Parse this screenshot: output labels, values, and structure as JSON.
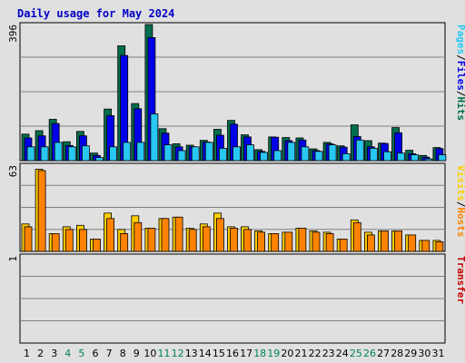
{
  "chart_data": {
    "type": "bar",
    "title": "Daily usage for May 2024",
    "days": [
      "1",
      "2",
      "3",
      "4",
      "5",
      "6",
      "7",
      "8",
      "9",
      "10",
      "11",
      "12",
      "13",
      "14",
      "15",
      "16",
      "17",
      "18",
      "19",
      "20",
      "21",
      "22",
      "23",
      "24",
      "25",
      "26",
      "27",
      "28",
      "29",
      "30",
      "31"
    ],
    "weekend_days": [
      "4",
      "5",
      "11",
      "12",
      "18",
      "19",
      "25",
      "26"
    ],
    "panels": [
      {
        "id": "top",
        "scale_label": "396",
        "ymax": 396,
        "right_labels": [
          "Hits",
          "Files",
          "Pages"
        ],
        "series": [
          {
            "name": "Hits",
            "color": "#006d4e",
            "values": [
              77,
              87,
              120,
              55,
              85,
              22,
              150,
              334,
              166,
              396,
              93,
              49,
              45,
              59,
              91,
              117,
              75,
              32,
              69,
              67,
              66,
              34,
              53,
              43,
              104,
              58,
              51,
              96,
              30,
              15,
              38
            ]
          },
          {
            "name": "Files",
            "color": "#0000e8",
            "values": [
              66,
              72,
              108,
              44,
              72,
              15,
              131,
              306,
              151,
              358,
              80,
              40,
              40,
              54,
              74,
              106,
              69,
              27,
              68,
              58,
              60,
              29,
              49,
              39,
              70,
              40,
              50,
              81,
              20,
              10,
              35
            ]
          },
          {
            "name": "Pages",
            "color": "#28c8f2",
            "values": [
              40,
              40,
              53,
              40,
              43,
              9,
              40,
              53,
              53,
              136,
              46,
              29,
              40,
              53,
              36,
              40,
              46,
              24,
              29,
              53,
              40,
              27,
              46,
              20,
              60,
              36,
              26,
              22,
              17,
              5,
              17
            ]
          }
        ]
      },
      {
        "id": "middle",
        "scale_label": "63",
        "ymax": 63,
        "right_labels": [
          "Hosts",
          "Visits"
        ],
        "series": [
          {
            "name": "Visits",
            "color": "#ffcd00",
            "values": [
              20,
              60,
              13,
              18,
              19,
              9,
              28,
              16,
              26,
              17,
              24,
              25,
              17,
              20,
              28,
              18,
              18,
              15,
              13,
              14,
              17,
              15,
              14,
              9,
              23,
              14,
              15,
              15,
              12,
              8,
              8
            ]
          },
          {
            "name": "Hosts",
            "color": "#ff8200",
            "values": [
              18,
              59,
              13,
              16,
              16,
              9,
              24,
              13,
              21,
              17,
              24,
              25,
              16,
              18,
              24,
              17,
              16,
              14,
              13,
              14,
              17,
              14,
              13,
              9,
              21,
              12,
              15,
              15,
              12,
              8,
              7
            ]
          }
        ]
      },
      {
        "id": "bottom",
        "scale_label": "1",
        "ymax": 1,
        "right_labels": [
          "Transfer"
        ],
        "series": [
          {
            "name": "Transfer",
            "color": "#c80000",
            "values": [
              0,
              0,
              0,
              0,
              0,
              0,
              0,
              0,
              0,
              0,
              0,
              0,
              0,
              0,
              0,
              0,
              0,
              0,
              0,
              0,
              0,
              0,
              0,
              0,
              0,
              0,
              0,
              0,
              0,
              0,
              0
            ]
          }
        ]
      }
    ],
    "grid": true,
    "colors": {
      "background": "#e0e0e0",
      "title": "#0000c8",
      "weekday_label": "#000000",
      "weekend_label": "#008060",
      "hits": "#006d4e",
      "files": "#0000e8",
      "pages": "#28c8f2",
      "visits": "#ffcd00",
      "hosts": "#ff8200",
      "transfer": "#c80000",
      "separator": "#ffffff"
    }
  }
}
